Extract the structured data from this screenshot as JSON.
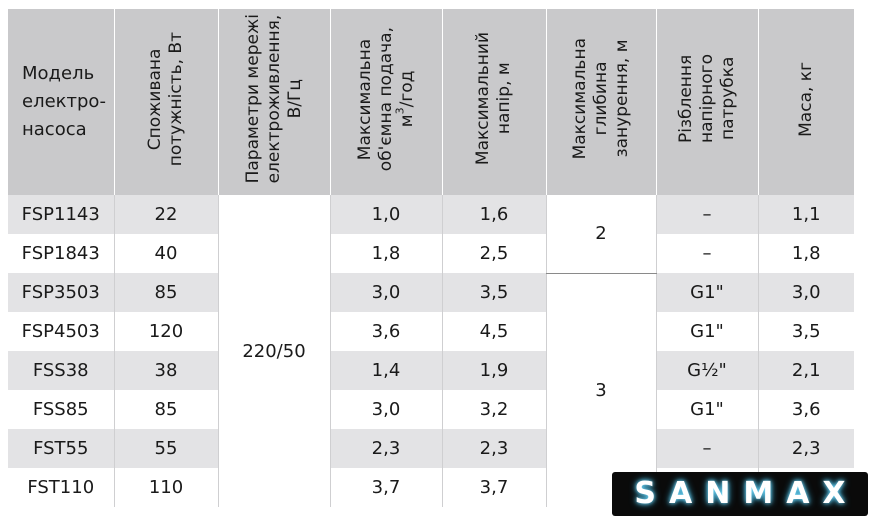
{
  "headers": {
    "model": [
      "Модель",
      "електро-",
      "насоса"
    ],
    "power": [
      "Споживана",
      "потужність, Вт"
    ],
    "mains": [
      "Параметри мережі",
      "електроживлення,",
      "В/Гц"
    ],
    "flow_line1": "Максимальна",
    "flow_line2": "об'ємна подача,",
    "flow_unit_base": "м",
    "flow_unit_sup": "3",
    "flow_unit_rest": "/год",
    "head": [
      "Максимальний",
      "напір, м"
    ],
    "depth": [
      "Максимальна",
      "глибина",
      "занурення, м"
    ],
    "thread": [
      "Різблення",
      "напірного",
      "патрубка"
    ],
    "mass": [
      "Маса, кг"
    ]
  },
  "mains_value": "220/50",
  "depth_values": [
    "2",
    "3"
  ],
  "rows": [
    {
      "model": "FSP1143",
      "power": "22",
      "flow": "1,0",
      "head": "1,6",
      "thread": "–",
      "mass": "1,1"
    },
    {
      "model": "FSP1843",
      "power": "40",
      "flow": "1,8",
      "head": "2,5",
      "thread": "–",
      "mass": "1,8"
    },
    {
      "model": "FSP3503",
      "power": "85",
      "flow": "3,0",
      "head": "3,5",
      "thread": "G1\"",
      "mass": "3,0"
    },
    {
      "model": "FSP4503",
      "power": "120",
      "flow": "3,6",
      "head": "4,5",
      "thread": "G1\"",
      "mass": "3,5"
    },
    {
      "model": "FSS38",
      "power": "38",
      "flow": "1,4",
      "head": "1,9",
      "thread": "G½\"",
      "mass": "2,1"
    },
    {
      "model": "FSS85",
      "power": "85",
      "flow": "3,0",
      "head": "3,2",
      "thread": "G1\"",
      "mass": "3,6"
    },
    {
      "model": "FST55",
      "power": "55",
      "flow": "2,3",
      "head": "2,3",
      "thread": "–",
      "mass": "2,3"
    },
    {
      "model": "FST110",
      "power": "110",
      "flow": "3,7",
      "head": "3,7",
      "thread": "",
      "mass": ""
    }
  ],
  "brand": "SANMAX",
  "colors": {
    "header_bg": "#c9c9cb",
    "row_shade": "#e3e3e5",
    "brand_bg": "#0a0a0a",
    "brand_glow": "#7fe0ff"
  }
}
